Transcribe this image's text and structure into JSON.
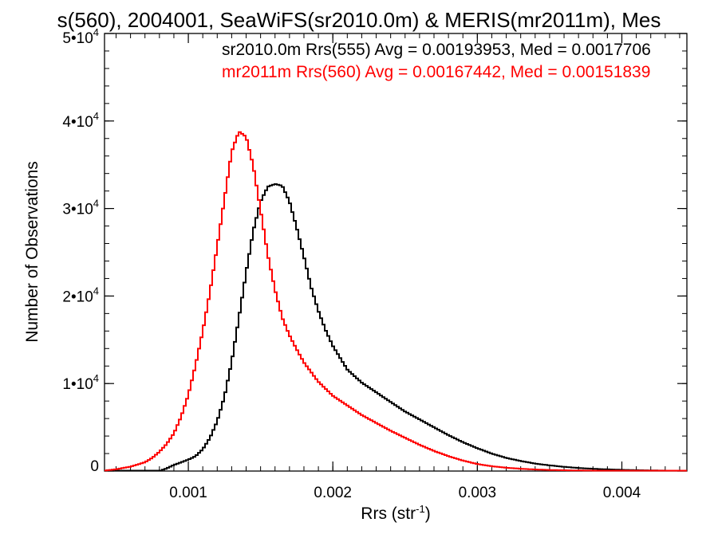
{
  "chart_data": {
    "type": "line",
    "title": "s(560), 2004001, SeaWiFS(sr2010.0m) & MERIS(mr2011m), Mes",
    "xlabel": "Rrs (str",
    "xlabel_sup": "-1",
    "xlabel_close": ")",
    "ylabel": "Number of Observations",
    "xlim": [
      0.00042,
      0.00445
    ],
    "ylim": [
      0,
      50000
    ],
    "x_ticks": [
      {
        "value": 0.001,
        "label": "0.001"
      },
      {
        "value": 0.002,
        "label": "0.002"
      },
      {
        "value": 0.003,
        "label": "0.003"
      },
      {
        "value": 0.004,
        "label": "0.004"
      }
    ],
    "y_ticks": [
      {
        "value": 0,
        "mant": "0",
        "exp": ""
      },
      {
        "value": 10000,
        "mant": "1•10",
        "exp": "4"
      },
      {
        "value": 20000,
        "mant": "2•10",
        "exp": "4"
      },
      {
        "value": 30000,
        "mant": "3•10",
        "exp": "4"
      },
      {
        "value": 40000,
        "mant": "4•10",
        "exp": "4"
      },
      {
        "value": 50000,
        "mant": "5•10",
        "exp": "4"
      }
    ],
    "grid": false,
    "legend_position": "top-right",
    "series": [
      {
        "legend": "sr2010.0m Rrs(555) Avg = 0.00193953, Med = 0.0017706",
        "color": "#000000",
        "x": [
          0.00042,
          0.0008,
          0.00085,
          0.0009,
          0.00095,
          0.001,
          0.00105,
          0.0011,
          0.00115,
          0.0012,
          0.00125,
          0.0013,
          0.00135,
          0.0014,
          0.00145,
          0.0015,
          0.00155,
          0.0016,
          0.00165,
          0.0017,
          0.00175,
          0.0018,
          0.00185,
          0.0019,
          0.00195,
          0.002,
          0.0021,
          0.0022,
          0.0023,
          0.0024,
          0.0025,
          0.0026,
          0.0027,
          0.0028,
          0.0029,
          0.003,
          0.0031,
          0.0032,
          0.0033,
          0.0034,
          0.0035,
          0.0036,
          0.0037,
          0.0038,
          0.0039,
          0.004,
          0.0041,
          0.0042,
          0.0043,
          0.00445
        ],
        "y": [
          0,
          0,
          300,
          700,
          1000,
          1300,
          1700,
          2500,
          3800,
          5700,
          8500,
          12500,
          17500,
          22700,
          27500,
          30800,
          32500,
          32800,
          32600,
          30800,
          27800,
          24500,
          21000,
          18300,
          16100,
          14300,
          11600,
          10100,
          9000,
          7900,
          6800,
          5900,
          5000,
          4100,
          3300,
          2600,
          2000,
          1500,
          1150,
          850,
          650,
          480,
          350,
          260,
          190,
          140,
          100,
          70,
          50,
          30
        ]
      },
      {
        "legend": "mr2011m Rrs(560) Avg = 0.00167442, Med = 0.00151839",
        "color": "#ff0000",
        "x": [
          0.00042,
          0.0005,
          0.0006,
          0.0007,
          0.00075,
          0.0008,
          0.00085,
          0.0009,
          0.00095,
          0.001,
          0.00105,
          0.0011,
          0.00115,
          0.0012,
          0.00125,
          0.0013,
          0.00135,
          0.0014,
          0.00145,
          0.0015,
          0.00155,
          0.0016,
          0.00165,
          0.0017,
          0.00175,
          0.0018,
          0.00185,
          0.0019,
          0.002,
          0.0021,
          0.0022,
          0.0023,
          0.0024,
          0.0025,
          0.0026,
          0.0027,
          0.0028,
          0.0029,
          0.003,
          0.0031,
          0.0032,
          0.0033,
          0.0034,
          0.0035,
          0.0036,
          0.0037,
          0.0038,
          0.0039,
          0.004,
          0.0041,
          0.0042,
          0.0043,
          0.00445
        ],
        "y": [
          50,
          200,
          500,
          1000,
          1500,
          2200,
          3100,
          4300,
          6200,
          8700,
          12100,
          16000,
          20500,
          25700,
          31100,
          36500,
          38800,
          38200,
          34800,
          29800,
          24700,
          20700,
          17500,
          15500,
          13900,
          12400,
          11300,
          10200,
          8600,
          7500,
          6400,
          5500,
          4600,
          3800,
          3000,
          2300,
          1700,
          1200,
          800,
          550,
          380,
          260,
          180,
          120,
          90,
          65,
          50,
          40,
          30,
          25,
          20,
          15,
          10
        ]
      }
    ]
  }
}
